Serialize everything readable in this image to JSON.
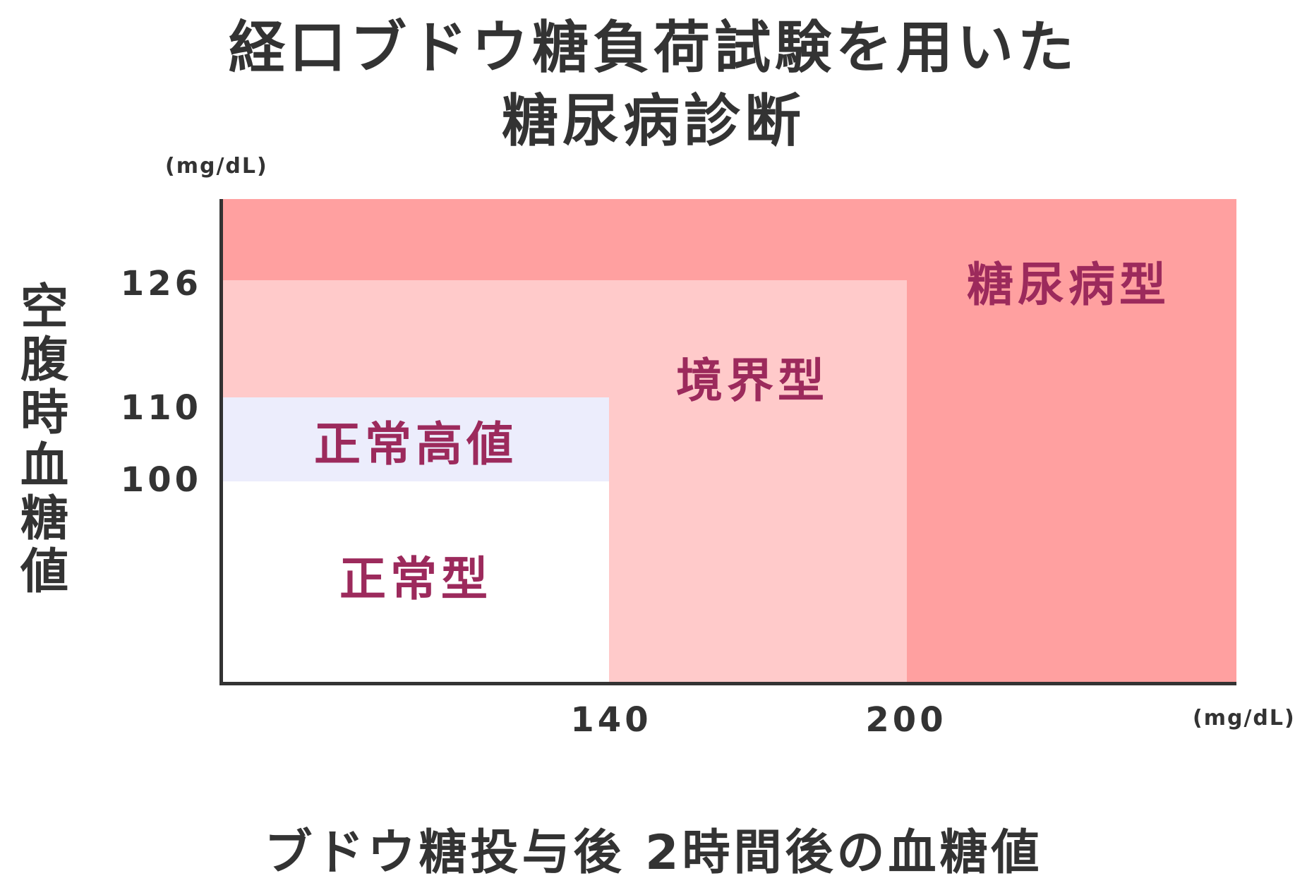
{
  "title": {
    "line1": "経口ブドウ糖負荷試験を用いた",
    "line2": "糖尿病診断"
  },
  "axes": {
    "y_unit": "(mg/dL)",
    "x_unit": "(mg/dL)",
    "y_label": [
      "空",
      "腹",
      "時",
      "血",
      "糖",
      "値"
    ],
    "x_label": "ブドウ糖投与後  2時間後の血糖値",
    "y_ticks": [
      "126",
      "110",
      "100"
    ],
    "x_ticks": [
      "140",
      "200"
    ]
  },
  "zones": {
    "diabetes": {
      "label": "糖尿病型",
      "color": "#ffa0a0"
    },
    "borderline": {
      "label": "境界型",
      "color": "#ffcaca"
    },
    "high_normal": {
      "label": "正常高値",
      "color": "#ecedfc"
    },
    "normal": {
      "label": "正常型",
      "color": "#ffffff"
    }
  },
  "colors": {
    "label_text": "#9c2a5c",
    "axis": "#333333"
  }
}
